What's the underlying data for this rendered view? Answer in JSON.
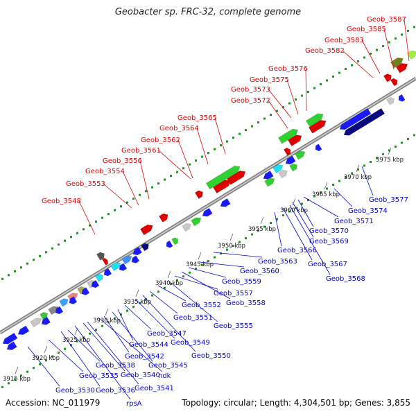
{
  "title": "Geobacter sp. FRC-32, complete genome",
  "footer": {
    "accession": "Accession: NC_011979",
    "summary": "Topology: circular; Length: 4,304,501 bp; Genes: 3,855"
  },
  "colors": {
    "forward_label": "#e00000",
    "reverse_label": "#0000d0",
    "backbone": "#a0a0a0",
    "dots": "#209020"
  },
  "scale_labels": [
    "3915 kbp",
    "3920 kbp",
    "3925 kbp",
    "3930 kbp",
    "3935 kbp",
    "3940 kbp",
    "3945 kbp",
    "3950 kbp",
    "3955 kbp",
    "3960 kbp",
    "3965 kbp",
    "3970 kbp",
    "3975 kbp"
  ],
  "top_labels": [
    "Geob_3548",
    "Geob_3553",
    "Geob_3554",
    "Geob_3556",
    "Geob_3561",
    "Geob_3562",
    "Geob_3564",
    "Geob_3565",
    "Geob_3572",
    "Geob_3573",
    "Geob_3575",
    "Geob_3576",
    "Geob_3582",
    "Geob_3583",
    "Geob_3585",
    "Geob_3587"
  ],
  "bottom_labels": [
    "Geob_3530",
    "Geob_3535",
    "Geob_3536",
    "rpsA",
    "Geob_3538",
    "Geob_3540",
    "Geob_3541",
    "ndk",
    "Geob_3542",
    "Geob_3545",
    "Geob_3544",
    "Geob_3547",
    "Geob_3549",
    "Geob_3550",
    "Geob_3551",
    "Geob_3552",
    "Geob_3555",
    "Geob_3557",
    "Geob_3558",
    "Geob_3559",
    "Geob_3560",
    "Geob_3563",
    "Geob_3566",
    "Geob_3567",
    "Geob_3568",
    "Geob_3569",
    "Geob_3570",
    "Geob_3571",
    "Geob_3574",
    "Geob_3577"
  ]
}
